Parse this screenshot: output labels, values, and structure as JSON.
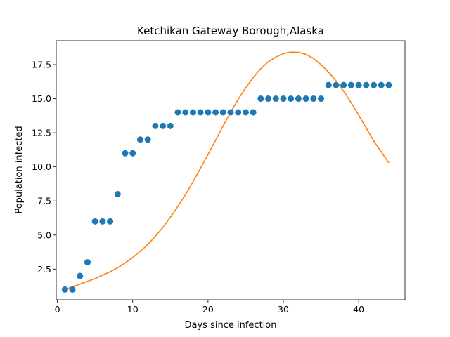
{
  "chart_data": {
    "type": "scatter",
    "title": "Ketchikan Gateway Borough,Alaska",
    "xlabel": "Days since infection",
    "ylabel": "Population infected",
    "xlim": [
      -0.15,
      46.15
    ],
    "ylim": [
      0.25,
      19.25
    ],
    "xticks": [
      0,
      10,
      20,
      30,
      40
    ],
    "yticks": [
      2.5,
      5.0,
      7.5,
      10.0,
      12.5,
      15.0,
      17.5
    ],
    "xtick_labels": [
      "0",
      "10",
      "20",
      "30",
      "40"
    ],
    "ytick_labels": [
      "2.5",
      "5.0",
      "7.5",
      "10.0",
      "12.5",
      "15.0",
      "17.5"
    ],
    "grid": false,
    "legend": "none",
    "series": [
      {
        "kind": "scatter",
        "color": "#1f77b4",
        "x": [
          1,
          2,
          3,
          4,
          5,
          6,
          7,
          8,
          9,
          10,
          11,
          12,
          13,
          14,
          15,
          16,
          17,
          18,
          19,
          20,
          21,
          22,
          23,
          24,
          25,
          26,
          27,
          28,
          29,
          30,
          31,
          32,
          33,
          34,
          35,
          36,
          37,
          38,
          39,
          40,
          41,
          42,
          43,
          44
        ],
        "y": [
          1,
          1,
          2,
          3,
          6,
          6,
          6,
          8,
          11,
          11,
          12,
          12,
          13,
          13,
          13,
          14,
          14,
          14,
          14,
          14,
          14,
          14,
          14,
          14,
          14,
          14,
          15,
          15,
          15,
          15,
          15,
          15,
          15,
          15,
          15,
          16,
          16,
          16,
          16,
          16,
          16,
          16,
          16,
          16
        ]
      },
      {
        "kind": "line",
        "color": "#ff7f0e",
        "x": [
          1,
          2,
          3,
          4,
          5,
          6,
          7,
          8,
          9,
          10,
          11,
          12,
          13,
          14,
          15,
          16,
          17,
          18,
          19,
          20,
          21,
          22,
          23,
          24,
          25,
          26,
          27,
          28,
          29,
          30,
          31,
          32,
          33,
          34,
          35,
          36,
          37,
          38,
          39,
          40,
          41,
          42,
          43,
          44
        ],
        "y": [
          1.0,
          1.2,
          1.4,
          1.6,
          1.8,
          2.05,
          2.3,
          2.6,
          2.95,
          3.35,
          3.8,
          4.3,
          4.9,
          5.55,
          6.3,
          7.1,
          7.95,
          8.9,
          9.9,
          10.9,
          11.95,
          13.0,
          14.0,
          14.95,
          15.8,
          16.55,
          17.2,
          17.7,
          18.05,
          18.3,
          18.42,
          18.4,
          18.25,
          17.95,
          17.5,
          16.95,
          16.3,
          15.55,
          14.7,
          13.8,
          12.85,
          11.9,
          11.1,
          10.3
        ]
      }
    ]
  }
}
